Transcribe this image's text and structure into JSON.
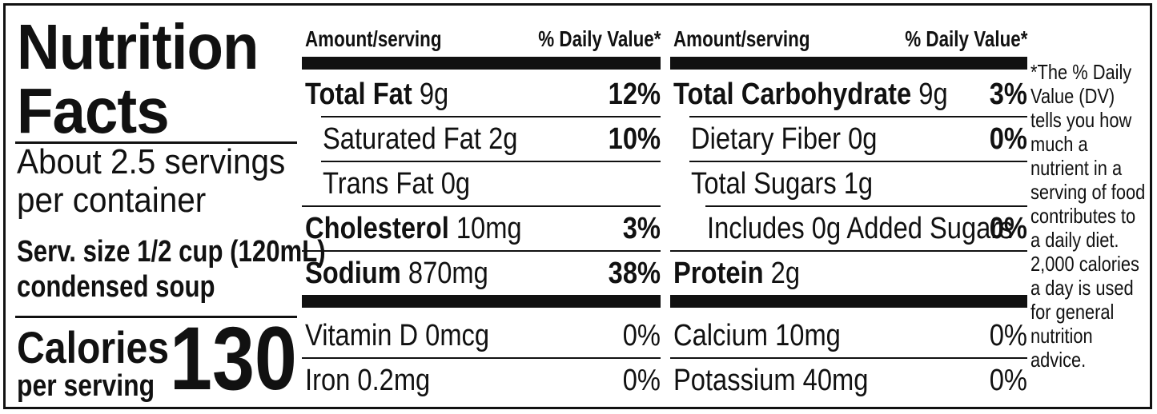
{
  "header": {
    "title_line1": "Nutrition",
    "title_line2": "Facts",
    "servings_line1": "About 2.5 servings",
    "servings_line2": "per container",
    "serving_size_line1": "Serv. size 1/2 cup (120mL)",
    "serving_size_line2": "condensed soup",
    "calories_label": "Calories",
    "calories_per": "per serving",
    "calories_value": "130"
  },
  "columns": {
    "amount_label": "Amount/serving",
    "dv_label": "% Daily Value*"
  },
  "left_panel": {
    "rows": [
      {
        "name": "Total Fat",
        "amount": "9g",
        "dv": "12%"
      },
      {
        "name": "Saturated Fat",
        "amount": "2g",
        "dv": "10%"
      },
      {
        "name": "Trans Fat",
        "amount": "0g",
        "dv": ""
      },
      {
        "name": "Cholesterol",
        "amount": "10mg",
        "dv": "3%"
      },
      {
        "name": "Sodium",
        "amount": "870mg",
        "dv": "38%"
      }
    ]
  },
  "right_panel": {
    "rows": [
      {
        "name": "Total Carbohydrate",
        "amount": "9g",
        "dv": "3%"
      },
      {
        "name": "Dietary Fiber",
        "amount": "0g",
        "dv": "0%"
      },
      {
        "name": "Total Sugars",
        "amount": "1g",
        "dv": ""
      },
      {
        "name": "Includes 0g Added Sugars",
        "amount": "",
        "dv": "0%"
      },
      {
        "name": "Protein",
        "amount": "2g",
        "dv": ""
      }
    ]
  },
  "vitamins": {
    "left": [
      {
        "text": "Vitamin D 0mcg",
        "dv": "0%"
      },
      {
        "text": "Iron 0.2mg",
        "dv": "0%"
      }
    ],
    "right": [
      {
        "text": "Calcium 10mg",
        "dv": "0%"
      },
      {
        "text": "Potassium 40mg",
        "dv": "0%"
      }
    ]
  },
  "footnote": {
    "lines": [
      "*The % Daily",
      "Value (DV)",
      "tells you how",
      "much a",
      "nutrient in a",
      "serving of food",
      "contributes to",
      "a daily diet.",
      "2,000 calories",
      "a day is used",
      "for general",
      "nutrition",
      "advice."
    ]
  },
  "colors": {
    "ink": "#111111",
    "background": "#ffffff"
  }
}
